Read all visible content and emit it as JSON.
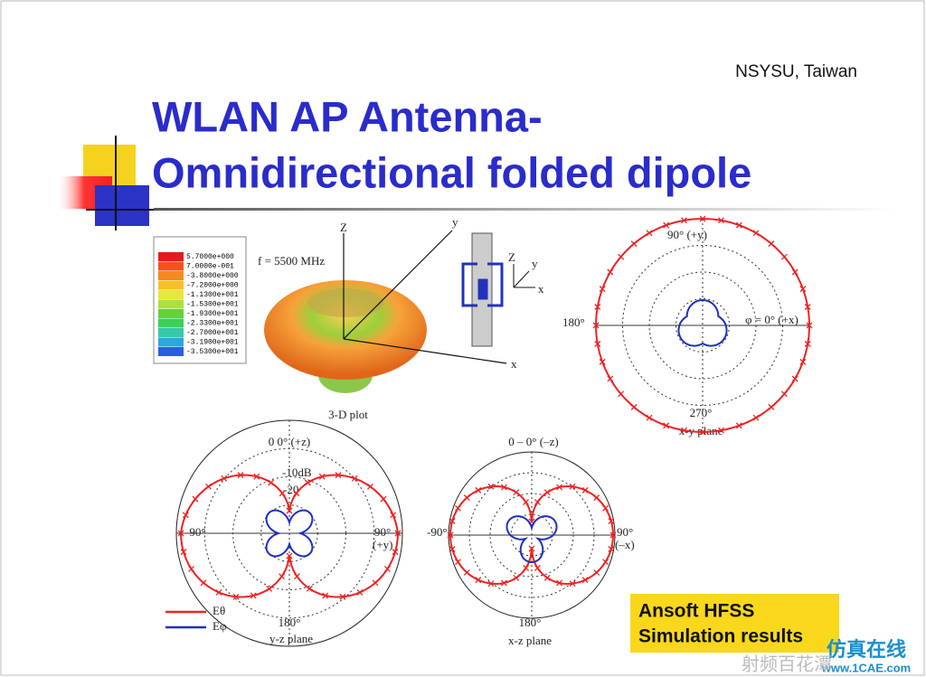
{
  "header": {
    "affiliation": "NSYSU, Taiwan",
    "title_line1": "WLAN AP Antenna-",
    "title_line2": "Omnidirectional folded dipole"
  },
  "plot3d": {
    "frequency": "f = 5500 MHz",
    "caption": "3-D plot",
    "axis_z": "Z",
    "axis_y": "y",
    "axis_x": "x",
    "colorbar": [
      "5.7000e+000",
      "7.0000e-001",
      "-3.8000e+000",
      "-7.2000e+000",
      "-1.1300e+001",
      "-1.5300e+001",
      "-1.9300e+001",
      "-2.3300e+001",
      "-2.7000e+001",
      "-3.1900e+001",
      "-3.5300e+001"
    ],
    "inset_z": "Z",
    "inset_y": "y",
    "inset_x": "x"
  },
  "xy_plane": {
    "top": "90° (+y)",
    "left": "180°",
    "right": "φ = 0° (+x)",
    "bottom": "270°",
    "caption": "x-y plane"
  },
  "yz_plane": {
    "top": "0    0° (+z)",
    "ring1": "-10dB",
    "ring2": "-20",
    "left": "-90°",
    "right": "90°",
    "right2": "(+y)",
    "bottom": "180°",
    "caption": "y-z plane"
  },
  "xz_plane": {
    "top": "0 – 0° (–z)",
    "left": "-90°",
    "right": "90°",
    "right2": "(–x)",
    "bottom": "180°",
    "caption": "x-z plane"
  },
  "legend": {
    "e_theta": "Eθ",
    "e_phi": "Eφ"
  },
  "note": {
    "line1": "Ansoft HFSS",
    "line2": "Simulation results"
  },
  "watermark": {
    "brand": "仿真在线",
    "site": "www.1CAE.com",
    "source": "射频百花潭"
  }
}
